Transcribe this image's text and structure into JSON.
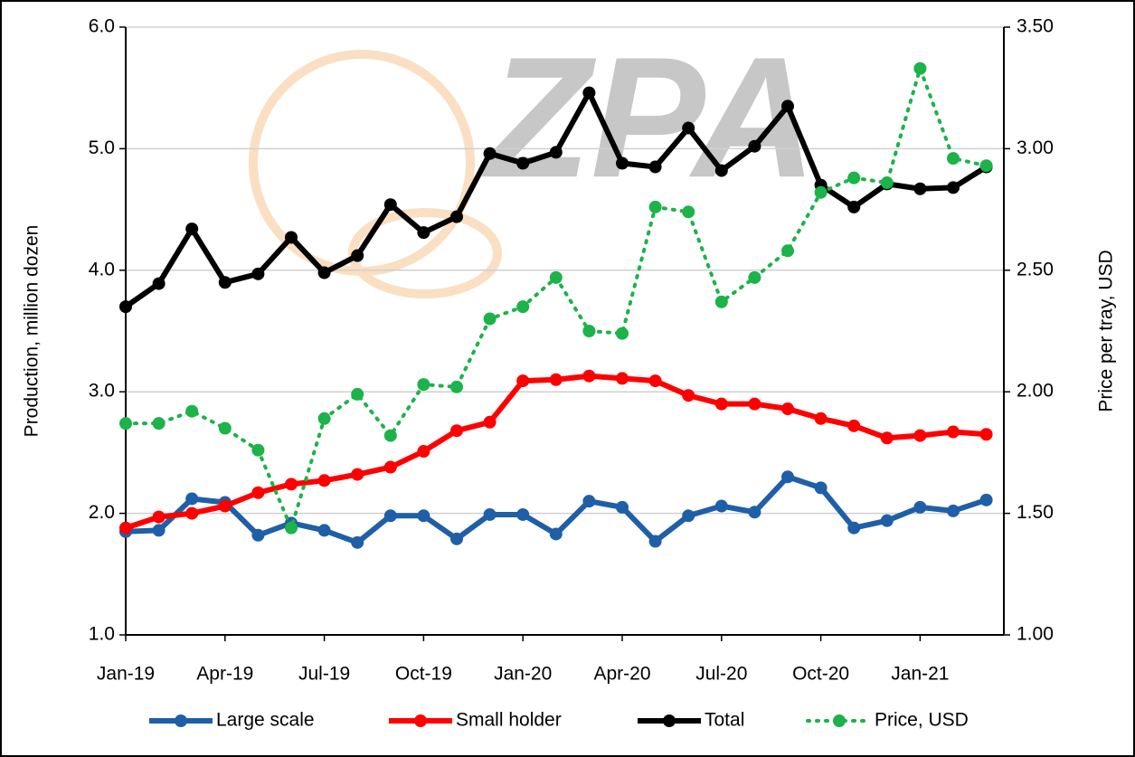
{
  "chart_data": {
    "type": "line",
    "watermark": "ZPA",
    "y_label": "Production, million dozen",
    "y2_label": "Price per tray, USD",
    "categories": [
      "Jan-19",
      null,
      null,
      "Apr-19",
      null,
      null,
      "Jul-19",
      null,
      null,
      "Oct-19",
      null,
      null,
      "Jan-20",
      null,
      null,
      "Apr-20",
      null,
      null,
      "Jul-20",
      null,
      null,
      "Oct-20",
      null,
      null,
      "Jan-21",
      null,
      null
    ],
    "ylim": [
      1,
      6
    ],
    "yticks": [
      {
        "value": 1,
        "label": "1.0"
      },
      {
        "value": 2,
        "label": "2.0"
      },
      {
        "value": 3,
        "label": "3.0"
      },
      {
        "value": 4,
        "label": "4.0"
      },
      {
        "value": 5,
        "label": "5.0"
      },
      {
        "value": 6,
        "label": "6.0"
      }
    ],
    "y2lim": [
      1,
      3.5
    ],
    "y2ticks": [
      {
        "value": 1,
        "label": "1.00"
      },
      {
        "value": 1.5,
        "label": "1.50"
      },
      {
        "value": 2,
        "label": "2.00"
      },
      {
        "value": 2.5,
        "label": "2.50"
      },
      {
        "value": 3,
        "label": "3.00"
      },
      {
        "value": 3.5,
        "label": "3.50"
      }
    ],
    "grid": true,
    "legend": "bottom",
    "series": [
      {
        "name": "Large scale",
        "color": "#1f5fa8",
        "line_style": "solid",
        "values": [
          1.85,
          1.86,
          2.12,
          2.09,
          1.82,
          1.92,
          1.86,
          1.76,
          1.98,
          1.98,
          1.79,
          1.99,
          1.99,
          1.83,
          2.1,
          2.05,
          1.77,
          1.98,
          2.06,
          2.01,
          2.3,
          2.21,
          1.88,
          1.94,
          2.05,
          2.02,
          2.11
        ]
      },
      {
        "name": "Small holder",
        "color": "#ff0000",
        "line_style": "solid",
        "values": [
          1.88,
          1.97,
          2.0,
          2.06,
          2.17,
          2.24,
          2.27,
          2.32,
          2.38,
          2.51,
          2.68,
          2.75,
          3.09,
          3.1,
          3.13,
          3.11,
          3.09,
          2.97,
          2.9,
          2.9,
          2.86,
          2.78,
          2.72,
          2.62,
          2.64,
          2.67,
          2.65
        ]
      },
      {
        "name": "Total",
        "color": "#000000",
        "line_style": "solid",
        "values": [
          3.7,
          3.89,
          4.34,
          3.9,
          3.97,
          4.27,
          3.98,
          4.12,
          4.54,
          4.31,
          4.44,
          4.96,
          4.88,
          4.97,
          5.46,
          4.88,
          4.85,
          5.17,
          4.82,
          5.02,
          5.35,
          4.7,
          4.52,
          4.71,
          4.67,
          4.68,
          4.85
        ]
      },
      {
        "name": "Price, USD",
        "color": "#1cb34a",
        "line_style": "dotted",
        "axis": "y2",
        "values": [
          1.87,
          1.87,
          1.92,
          1.85,
          1.76,
          1.44,
          1.89,
          1.99,
          1.82,
          2.03,
          2.02,
          2.3,
          2.35,
          2.47,
          2.25,
          2.24,
          2.76,
          2.74,
          2.37,
          2.47,
          2.58,
          2.82,
          2.88,
          2.86,
          3.33,
          2.96,
          2.93
        ]
      }
    ]
  }
}
